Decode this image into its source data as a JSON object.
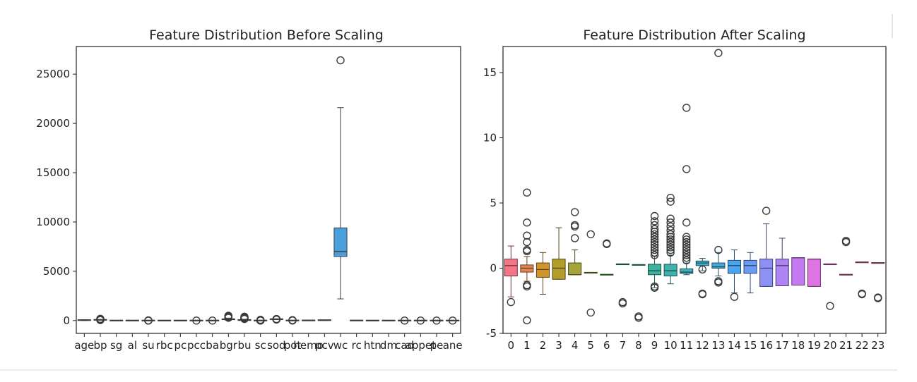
{
  "chart_data": [
    {
      "type": "box",
      "title": "Feature Distribution Before Scaling",
      "xlabel": "",
      "ylabel": "",
      "ylim": [
        -1300,
        27800
      ],
      "yticks": [
        0,
        5000,
        10000,
        15000,
        20000,
        25000
      ],
      "categories": [
        "age",
        "bp",
        "sg",
        "al",
        "su",
        "rbc",
        "pc",
        "pcc",
        "ba",
        "bgr",
        "bu",
        "sc",
        "sod",
        "pot",
        "hemo",
        "pcv",
        "wc",
        "rc",
        "htn",
        "dm",
        "cad",
        "appet",
        "pe",
        "ane"
      ],
      "tick_labels": [
        "age",
        "bp",
        "sg",
        "al",
        "su",
        "rbc",
        "pc",
        "pcc",
        "ba",
        "bgr",
        "bu",
        "sc",
        "sod",
        "pot",
        "hemo",
        "pcv",
        "wc",
        "rc",
        "htn",
        "dm",
        "cad",
        "appet",
        "pe",
        "ane"
      ],
      "boxes": [
        {
          "q1": 30,
          "median": 50,
          "q3": 60,
          "whislo": 2,
          "whishi": 90,
          "fliers": []
        },
        {
          "q1": 70,
          "median": 78,
          "q3": 80,
          "whislo": 50,
          "whishi": 100,
          "fliers": [
            180,
            140,
            120,
            50
          ]
        },
        {
          "q1": 1.01,
          "median": 1.02,
          "q3": 1.02,
          "whislo": 1.005,
          "whishi": 1.025,
          "fliers": []
        },
        {
          "q1": 0,
          "median": 0,
          "q3": 2,
          "whislo": 0,
          "whishi": 5,
          "fliers": []
        },
        {
          "q1": 0,
          "median": 0,
          "q3": 0,
          "whislo": 0,
          "whishi": 0,
          "fliers": [
            5,
            4,
            3,
            2,
            1
          ]
        },
        {
          "q1": 0,
          "median": 1,
          "q3": 1,
          "whislo": 0,
          "whishi": 1,
          "fliers": []
        },
        {
          "q1": 0,
          "median": 1,
          "q3": 1,
          "whislo": 0,
          "whishi": 1,
          "fliers": []
        },
        {
          "q1": 0,
          "median": 0,
          "q3": 0,
          "whislo": 0,
          "whishi": 0,
          "fliers": [
            1
          ]
        },
        {
          "q1": 0,
          "median": 0,
          "q3": 0,
          "whislo": 0,
          "whishi": 0,
          "fliers": [
            1
          ]
        },
        {
          "q1": 100,
          "median": 120,
          "q3": 160,
          "whislo": 22,
          "whishi": 250,
          "fliers": [
            490,
            460,
            430,
            400,
            370,
            340,
            310,
            280
          ]
        },
        {
          "q1": 30,
          "median": 45,
          "q3": 70,
          "whislo": 1.5,
          "whishi": 130,
          "fliers": [
            390,
            320,
            280,
            240,
            200,
            160
          ]
        },
        {
          "q1": 0.9,
          "median": 1.3,
          "q3": 2.8,
          "whislo": 0.4,
          "whishi": 5.5,
          "fliers": [
            76,
            48,
            32,
            24,
            18,
            14,
            12,
            10,
            8,
            7
          ]
        },
        {
          "q1": 135,
          "median": 138,
          "q3": 142,
          "whislo": 125,
          "whishi": 150,
          "fliers": [
            163,
            120,
            111,
            104
          ]
        },
        {
          "q1": 3.8,
          "median": 4.4,
          "q3": 4.9,
          "whislo": 2.5,
          "whishi": 6.5,
          "fliers": [
            47,
            39,
            7.6,
            7.0
          ]
        },
        {
          "q1": 10,
          "median": 12.5,
          "q3": 14.6,
          "whislo": 3.1,
          "whishi": 17.8,
          "fliers": []
        },
        {
          "q1": 32,
          "median": 40,
          "q3": 45,
          "whislo": 9,
          "whishi": 54,
          "fliers": []
        },
        {
          "q1": 6500,
          "median": 7000,
          "q3": 9400,
          "whislo": 2200,
          "whishi": 21600,
          "fliers": [
            26400
          ]
        },
        {
          "q1": 3.9,
          "median": 4.8,
          "q3": 5.4,
          "whislo": 2.1,
          "whishi": 8,
          "fliers": []
        },
        {
          "q1": 0,
          "median": 0,
          "q3": 1,
          "whislo": 0,
          "whishi": 1,
          "fliers": []
        },
        {
          "q1": 0,
          "median": 0,
          "q3": 1,
          "whislo": 0,
          "whishi": 1,
          "fliers": []
        },
        {
          "q1": 0,
          "median": 0,
          "q3": 0,
          "whislo": 0,
          "whishi": 0,
          "fliers": [
            1
          ]
        },
        {
          "q1": 0,
          "median": 0,
          "q3": 0,
          "whislo": 0,
          "whishi": 0,
          "fliers": [
            1
          ]
        },
        {
          "q1": 0,
          "median": 0,
          "q3": 0,
          "whislo": 0,
          "whishi": 0,
          "fliers": [
            1
          ]
        },
        {
          "q1": 0,
          "median": 0,
          "q3": 0,
          "whislo": 0,
          "whishi": 0,
          "fliers": [
            1
          ]
        }
      ]
    },
    {
      "type": "box",
      "title": "Feature Distribution After Scaling",
      "xlabel": "",
      "ylabel": "",
      "ylim": [
        -5,
        17
      ],
      "yticks": [
        -5,
        0,
        5,
        10,
        15
      ],
      "categories": [
        "0",
        "1",
        "2",
        "3",
        "4",
        "5",
        "6",
        "7",
        "8",
        "9",
        "10",
        "11",
        "12",
        "13",
        "14",
        "15",
        "16",
        "17",
        "18",
        "19",
        "20",
        "21",
        "22",
        "23"
      ],
      "tick_labels": [
        "0",
        "1",
        "2",
        "3",
        "4",
        "5",
        "6",
        "7",
        "8",
        "9",
        "10",
        "11",
        "12",
        "13",
        "14",
        "15",
        "16",
        "17",
        "18",
        "19",
        "20",
        "21",
        "22",
        "23"
      ],
      "boxes": [
        {
          "q1": -0.6,
          "median": 0.2,
          "q3": 0.7,
          "whislo": -2.2,
          "whishi": 1.7,
          "fliers": [
            -2.6
          ]
        },
        {
          "q1": -0.3,
          "median": 0.0,
          "q3": 0.25,
          "whislo": -1.0,
          "whishi": 0.9,
          "fliers": [
            5.8,
            3.5,
            2.5,
            2.0,
            1.4,
            1.3,
            -1.3,
            -1.4,
            -4.0
          ]
        },
        {
          "q1": -0.7,
          "median": -0.1,
          "q3": 0.4,
          "whislo": -2.0,
          "whishi": 1.2,
          "fliers": []
        },
        {
          "q1": -0.85,
          "median": 0.0,
          "q3": 0.7,
          "whislo": -0.85,
          "whishi": 3.1,
          "fliers": []
        },
        {
          "q1": -0.5,
          "median": -0.5,
          "q3": 0.4,
          "whislo": -0.5,
          "whishi": 1.4,
          "fliers": [
            4.3,
            3.3,
            3.2,
            2.3
          ]
        },
        {
          "q1": -0.35,
          "median": -0.35,
          "q3": -0.35,
          "whislo": -0.35,
          "whishi": -0.35,
          "fliers": [
            2.6,
            -3.4
          ]
        },
        {
          "q1": -0.5,
          "median": -0.5,
          "q3": -0.5,
          "whislo": -0.5,
          "whishi": -0.5,
          "fliers": [
            1.9,
            1.85
          ]
        },
        {
          "q1": 0.3,
          "median": 0.3,
          "q3": 0.3,
          "whislo": 0.3,
          "whishi": 0.3,
          "fliers": [
            -2.7,
            -2.6
          ]
        },
        {
          "q1": 0.25,
          "median": 0.25,
          "q3": 0.25,
          "whislo": 0.25,
          "whishi": 0.25,
          "fliers": [
            -3.8,
            -3.7
          ]
        },
        {
          "q1": -0.5,
          "median": -0.2,
          "q3": 0.3,
          "whislo": -1.5,
          "whishi": 0.9,
          "fliers": [
            4.0,
            3.6,
            3.3,
            3.0,
            2.8,
            2.6,
            2.4,
            2.2,
            2.0,
            1.8,
            1.6,
            1.4,
            1.2,
            1.0,
            -1.5,
            -1.4
          ]
        },
        {
          "q1": -0.6,
          "median": -0.2,
          "q3": 0.3,
          "whislo": -1.2,
          "whishi": 1.0,
          "fliers": [
            5.4,
            5.1,
            3.8,
            3.5,
            3.2,
            2.9,
            2.6,
            2.4,
            2.2,
            2.0,
            1.8,
            1.6,
            1.4,
            1.2
          ]
        },
        {
          "q1": -0.4,
          "median": -0.3,
          "q3": -0.05,
          "whislo": -0.5,
          "whishi": 0.4,
          "fliers": [
            12.3,
            7.6,
            3.5,
            2.4,
            2.2,
            2.0,
            1.8,
            1.6,
            1.4,
            1.2,
            1.0,
            0.8,
            0.6
          ]
        },
        {
          "q1": 0.2,
          "median": 0.4,
          "q3": 0.55,
          "whislo": -0.2,
          "whishi": 0.75,
          "fliers": [
            -0.1,
            -2.0,
            -1.95
          ]
        },
        {
          "q1": 0.0,
          "median": 0.1,
          "q3": 0.4,
          "whislo": -0.6,
          "whishi": 1.2,
          "fliers": [
            16.5,
            1.4,
            -1.1,
            -1.0
          ]
        },
        {
          "q1": -0.4,
          "median": 0.2,
          "q3": 0.6,
          "whislo": -1.9,
          "whishi": 1.4,
          "fliers": [
            -2.2
          ]
        },
        {
          "q1": -0.4,
          "median": 0.2,
          "q3": 0.6,
          "whislo": -1.9,
          "whishi": 1.2,
          "fliers": []
        },
        {
          "q1": -1.4,
          "median": 0.0,
          "q3": 0.7,
          "whislo": -1.4,
          "whishi": 3.4,
          "fliers": [
            4.4
          ]
        },
        {
          "q1": -1.35,
          "median": 0.2,
          "q3": 0.7,
          "whislo": -1.35,
          "whishi": 2.3,
          "fliers": []
        },
        {
          "q1": -1.3,
          "median": 0.8,
          "q3": 0.8,
          "whislo": -1.3,
          "whishi": 0.8,
          "fliers": []
        },
        {
          "q1": -1.4,
          "median": 0.7,
          "q3": 0.7,
          "whislo": -1.4,
          "whishi": 0.7,
          "fliers": []
        },
        {
          "q1": 0.3,
          "median": 0.3,
          "q3": 0.3,
          "whislo": 0.3,
          "whishi": 0.3,
          "fliers": [
            -2.9
          ]
        },
        {
          "q1": -0.5,
          "median": -0.5,
          "q3": -0.5,
          "whislo": -0.5,
          "whishi": -0.5,
          "fliers": [
            2.1,
            2.0
          ]
        },
        {
          "q1": 0.45,
          "median": 0.45,
          "q3": 0.45,
          "whislo": 0.45,
          "whishi": 0.45,
          "fliers": [
            -2.0,
            -1.95
          ]
        },
        {
          "q1": 0.4,
          "median": 0.4,
          "q3": 0.4,
          "whislo": 0.4,
          "whishi": 0.4,
          "fliers": [
            -2.3,
            -2.25
          ]
        }
      ]
    }
  ],
  "colors": {
    "left_box": "#4a9fdd",
    "right_palette": [
      "#f47686",
      "#e58553",
      "#d0942a",
      "#b49c2b",
      "#a4a43b",
      "#86ae3b",
      "#4fb44a",
      "#39b76b",
      "#3bb58a",
      "#3db39d",
      "#3eb2ad",
      "#3fb0bd",
      "#41adcc",
      "#44aade",
      "#4aa5ee",
      "#6a9cf5",
      "#8d90f5",
      "#ac84f3",
      "#c47bf1",
      "#de73e3",
      "#ed70cb",
      "#f372b4",
      "#f5739f",
      "#f5768c"
    ],
    "axis": "#222222",
    "flier": "#3a3a3a"
  }
}
